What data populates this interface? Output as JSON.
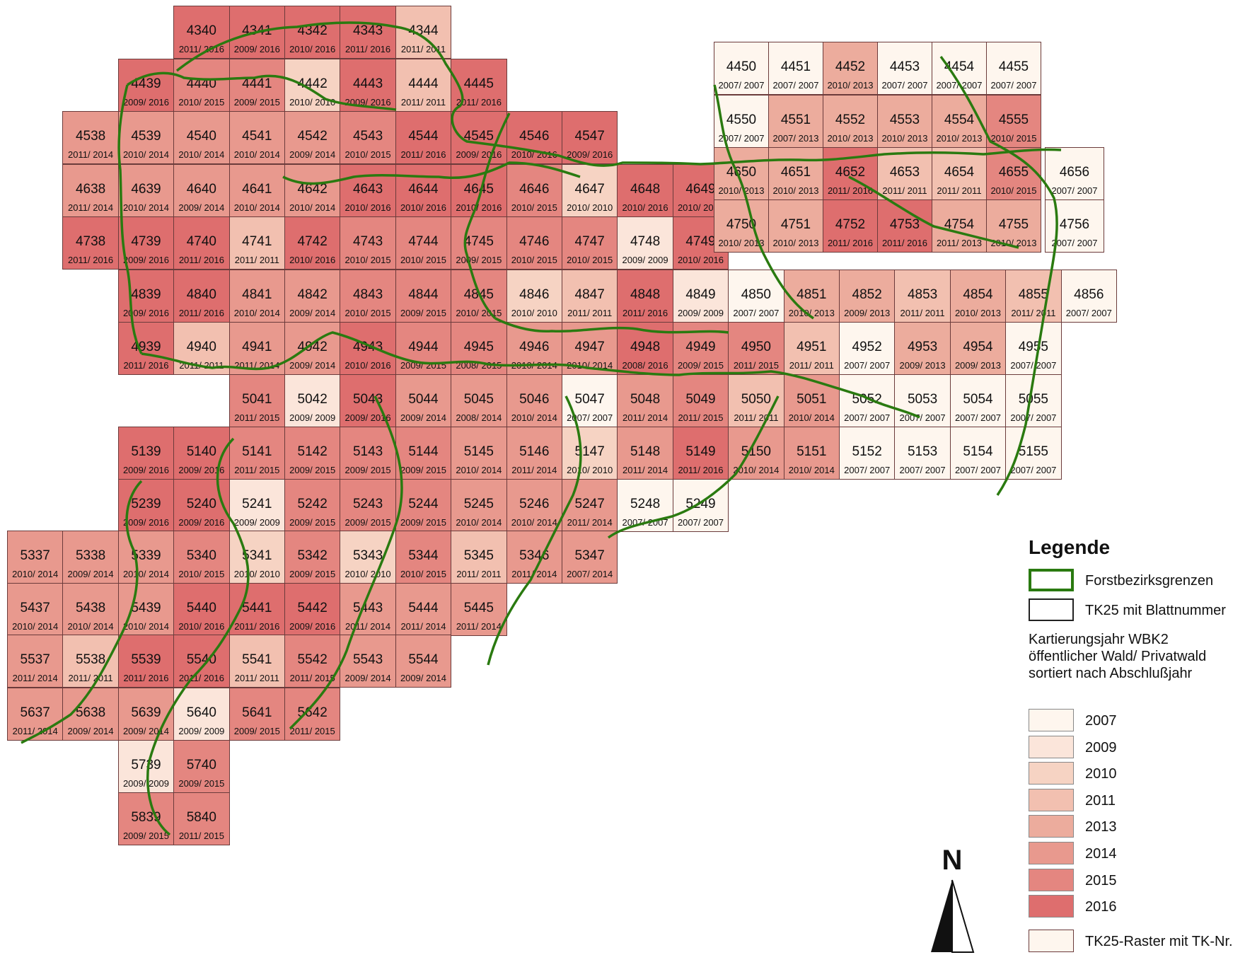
{
  "legend": {
    "title": "Legende",
    "boundary_label": "Forstbezirksgrenzen",
    "sheet_label": "TK25 mit Blattnummer",
    "heading_lines": [
      "Kartierungsjahr WBK2",
      "öffentlicher Wald/ Privatwald",
      "sortiert nach Abschlußjahr"
    ],
    "years": [
      {
        "label": "2007",
        "color": "#fef6ee"
      },
      {
        "label": "2009",
        "color": "#fbe5da"
      },
      {
        "label": "2010",
        "color": "#f6d3c3"
      },
      {
        "label": "2011",
        "color": "#f2c0b0"
      },
      {
        "label": "2013",
        "color": "#ecac9d"
      },
      {
        "label": "2014",
        "color": "#e8998e"
      },
      {
        "label": "2015",
        "color": "#e48680"
      },
      {
        "label": "2016",
        "color": "#de6e6e"
      }
    ],
    "raster_label": "TK25-Raster mit TK-Nr."
  },
  "north_arrow": {
    "letter": "N"
  },
  "colors": {
    "boundary": "#2a7a10",
    "tile_border": "#6b3b3b",
    "legend_box_border": "#222222"
  },
  "map": {
    "rows": [
      [
        "4340:2011/ 2016",
        "4341:2009/ 2016",
        "4342:2010/ 2016",
        "4343:2011/ 2016",
        "4344:2011/ 2011"
      ],
      [
        "4439:2009/ 2016",
        "4440:2010/ 2015",
        "4441:2009/ 2015",
        "4442:2010/ 2010",
        "4443:2009/ 2016",
        "4444:2011/ 2011",
        "4445:2011/ 2016"
      ],
      [
        "4538:2011/ 2014",
        "4539:2010/ 2014",
        "4540:2010/ 2014",
        "4541:2010/ 2014",
        "4542:2009/ 2014",
        "4543:2010/ 2015",
        "4544:2011/ 2016",
        "4545:2009/ 2016",
        "4546:2010/ 2016",
        "4547:2009/ 2016"
      ],
      [
        "4638:2011/ 2014",
        "4639:2010/ 2014",
        "4640:2009/ 2014",
        "4641:2010/ 2014",
        "4642:2010/ 2014",
        "4643:2010/ 2016",
        "4644:2010/ 2016",
        "4645:2010/ 2016",
        "4646:2010/ 2015",
        "4647:2010/ 2010",
        "4648:2010/ 2016",
        "4649:2010/ 2016"
      ],
      [
        "4738:2011/ 2016",
        "4739:2009/ 2016",
        "4740:2011/ 2016",
        "4741:2011/ 2011",
        "4742:2010/ 2016",
        "4743:2010/ 2015",
        "4744:2010/ 2015",
        "4745:2009/ 2015",
        "4746:2010/ 2015",
        "4747:2010/ 2015",
        "4748:2009/ 2009",
        "4749:2010/ 2016"
      ],
      [
        "4839:2009/ 2016",
        "4840:2011/ 2016",
        "4841:2010/ 2014",
        "4842:2009/ 2014",
        "4843:2010/ 2015",
        "4844:2009/ 2015",
        "4845:2010/ 2015",
        "4846:2010/ 2010",
        "4847:2011/ 2011",
        "4848:2011/ 2016",
        "4849:2009/ 2009",
        "4850:2007/ 2007",
        "4851:2010/ 2013",
        "4852:2009/ 2013",
        "4853:2011/ 2011",
        "4854:2010/ 2013",
        "4855:2011/ 2011",
        "4856:2007/ 2007"
      ],
      [
        "4939:2011/ 2016",
        "4940:2011/ 2011",
        "4941:2011/ 2014",
        "4942:2009/ 2014",
        "4943:2010/ 2016",
        "4944:2009/ 2015",
        "4945:2008/ 2015",
        "4946:2010/ 2014",
        "4947:2010/ 2014",
        "4948:2008/ 2016",
        "4949:2009/ 2015",
        "4950:2011/ 2015",
        "4951:2011/ 2011",
        "4952:2007/ 2007",
        "4953:2009/ 2013",
        "4954:2009/ 2013",
        "4955:2007/ 2007"
      ],
      [
        "5041:2011/ 2015",
        "5042:2009/ 2009",
        "5043:2009/ 2016",
        "5044:2009/ 2014",
        "5045:2008/ 2014",
        "5046:2010/ 2014",
        "5047:2007/ 2007",
        "5048:2011/ 2014",
        "5049:2011/ 2015",
        "5050:2011/ 2011",
        "5051:2010/ 2014",
        "5052:2007/ 2007",
        "5053:2007/ 2007",
        "5054:2007/ 2007",
        "5055:2007/ 2007"
      ],
      [
        "5139:2009/ 2016",
        "5140:2009/ 2016",
        "5141:2011/ 2015",
        "5142:2009/ 2015",
        "5143:2009/ 2015",
        "5144:2009/ 2015",
        "5145:2010/ 2014",
        "5146:2011/ 2014",
        "5147:2010/ 2010",
        "5148:2011/ 2014",
        "5149:2011/ 2016",
        "5150:2010/ 2014",
        "5151:2010/ 2014",
        "5152:2007/ 2007",
        "5153:2007/ 2007",
        "5154:2007/ 2007",
        "5155:2007/ 2007"
      ],
      [
        "5239:2009/ 2016",
        "5240:2009/ 2016",
        "5241:2009/ 2009",
        "5242:2009/ 2015",
        "5243:2009/ 2015",
        "5244:2009/ 2015",
        "5245:2010/ 2014",
        "5246:2010/ 2014",
        "5247:2011/ 2014",
        "5248:2007/ 2007",
        "5249:2007/ 2007"
      ],
      [
        "5337:2010/ 2014",
        "5338:2009/ 2014",
        "5339:2010/ 2014",
        "5340:2010/ 2015",
        "5341:2010/ 2010",
        "5342:2009/ 2015",
        "5343:2010/ 2010",
        "5344:2010/ 2015",
        "5345:2011/ 2011",
        "5346:2011/ 2014",
        "5347:2007/ 2014"
      ],
      [
        "5437:2010/ 2014",
        "5438:2010/ 2014",
        "5439:2010/ 2014",
        "5440:2010/ 2016",
        "5441:2011/ 2016",
        "5442:2009/ 2016",
        "5443:2011/ 2014",
        "5444:2011/ 2014",
        "5445:2011/ 2014"
      ],
      [
        "5537:2011/ 2014",
        "5538:2011/ 2011",
        "5539:2011/ 2016",
        "5540:2011/ 2016",
        "5541:2011/ 2011",
        "5542:2011/ 2015",
        "5543:2009/ 2014",
        "5544:2009/ 2014"
      ],
      [
        "5637:2011/ 2014",
        "5638:2009/ 2014",
        "5639:2009/ 2014",
        "5640:2009/ 2009",
        "5641:2009/ 2015",
        "5642:2011/ 2015"
      ],
      [
        "5739:2009/ 2009",
        "5740:2009/ 2015"
      ],
      [
        "5839:2009/ 2015",
        "5840:2011/ 2015"
      ]
    ],
    "upper_right": [
      [
        "4450:2007/ 2007",
        "4451:2007/ 2007",
        "4452:2010/ 2013",
        "4453:2007/ 2007",
        "4454:2007/ 2007",
        "4455:2007/ 2007"
      ],
      [
        "4550:2007/ 2007",
        "4551:2007/ 2013",
        "4552:2010/ 2013",
        "4553:2010/ 2013",
        "4554:2010/ 2013",
        "4555:2010/ 2015"
      ],
      [
        "4650:2010/ 2013",
        "4651:2010/ 2013",
        "4652:2011/ 2016",
        "4653:2011/ 2011",
        "4654:2011/ 2011",
        "4655:2010/ 2015",
        "4656:2007/ 2007"
      ],
      [
        "4750:2010/ 2013",
        "4751:2010/ 2013",
        "4752:2011/ 2016",
        "4753:2011/ 2016",
        "4754:2011/ 2013",
        "4755:2010/ 2013",
        "4756:2007/ 2007"
      ]
    ]
  }
}
